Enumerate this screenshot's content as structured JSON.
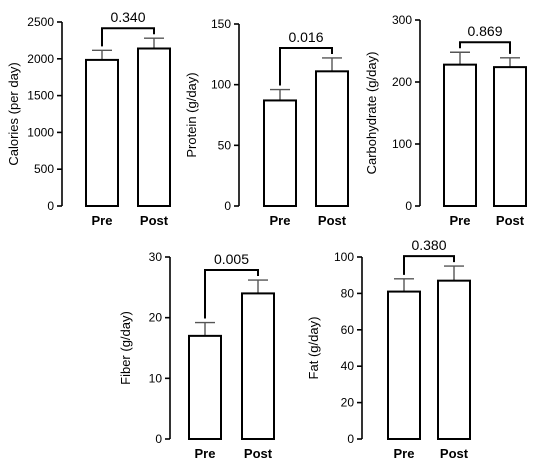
{
  "chart_data": [
    {
      "type": "bar",
      "ylabel": "Calories (per day)",
      "categories": [
        "Pre",
        "Post"
      ],
      "values": [
        1985,
        2140
      ],
      "errors": [
        130,
        140
      ],
      "ylim": [
        0,
        2500
      ],
      "yticks": [
        "0",
        "500",
        "1000",
        "1500",
        "2000",
        "2500"
      ],
      "p_value": "0.340"
    },
    {
      "type": "bar",
      "ylabel": "Protein (g/day)",
      "categories": [
        "Pre",
        "Post"
      ],
      "values": [
        87,
        111
      ],
      "errors": [
        9,
        11
      ],
      "ylim": [
        0,
        150
      ],
      "yticks": [
        "0",
        "50",
        "100",
        "150"
      ],
      "p_value": "0.016"
    },
    {
      "type": "bar",
      "ylabel": "Carbohydrate (g/day)",
      "categories": [
        "Pre",
        "Post"
      ],
      "values": [
        228,
        224
      ],
      "errors": [
        20,
        15
      ],
      "ylim": [
        0,
        300
      ],
      "yticks": [
        "0",
        "100",
        "200",
        "300"
      ],
      "p_value": "0.869"
    },
    {
      "type": "bar",
      "ylabel": "Fiber (g/day)",
      "categories": [
        "Pre",
        "Post"
      ],
      "values": [
        17,
        24
      ],
      "errors": [
        2.2,
        2.2
      ],
      "ylim": [
        0,
        30
      ],
      "yticks": [
        "0",
        "10",
        "20",
        "30"
      ],
      "p_value": "0.005"
    },
    {
      "type": "bar",
      "ylabel": "Fat (g/day)",
      "categories": [
        "Pre",
        "Post"
      ],
      "values": [
        81,
        87
      ],
      "errors": [
        7,
        8
      ],
      "ylim": [
        0,
        100
      ],
      "yticks": [
        "0",
        "20",
        "40",
        "60",
        "80",
        "100"
      ],
      "p_value": "0.380"
    }
  ]
}
